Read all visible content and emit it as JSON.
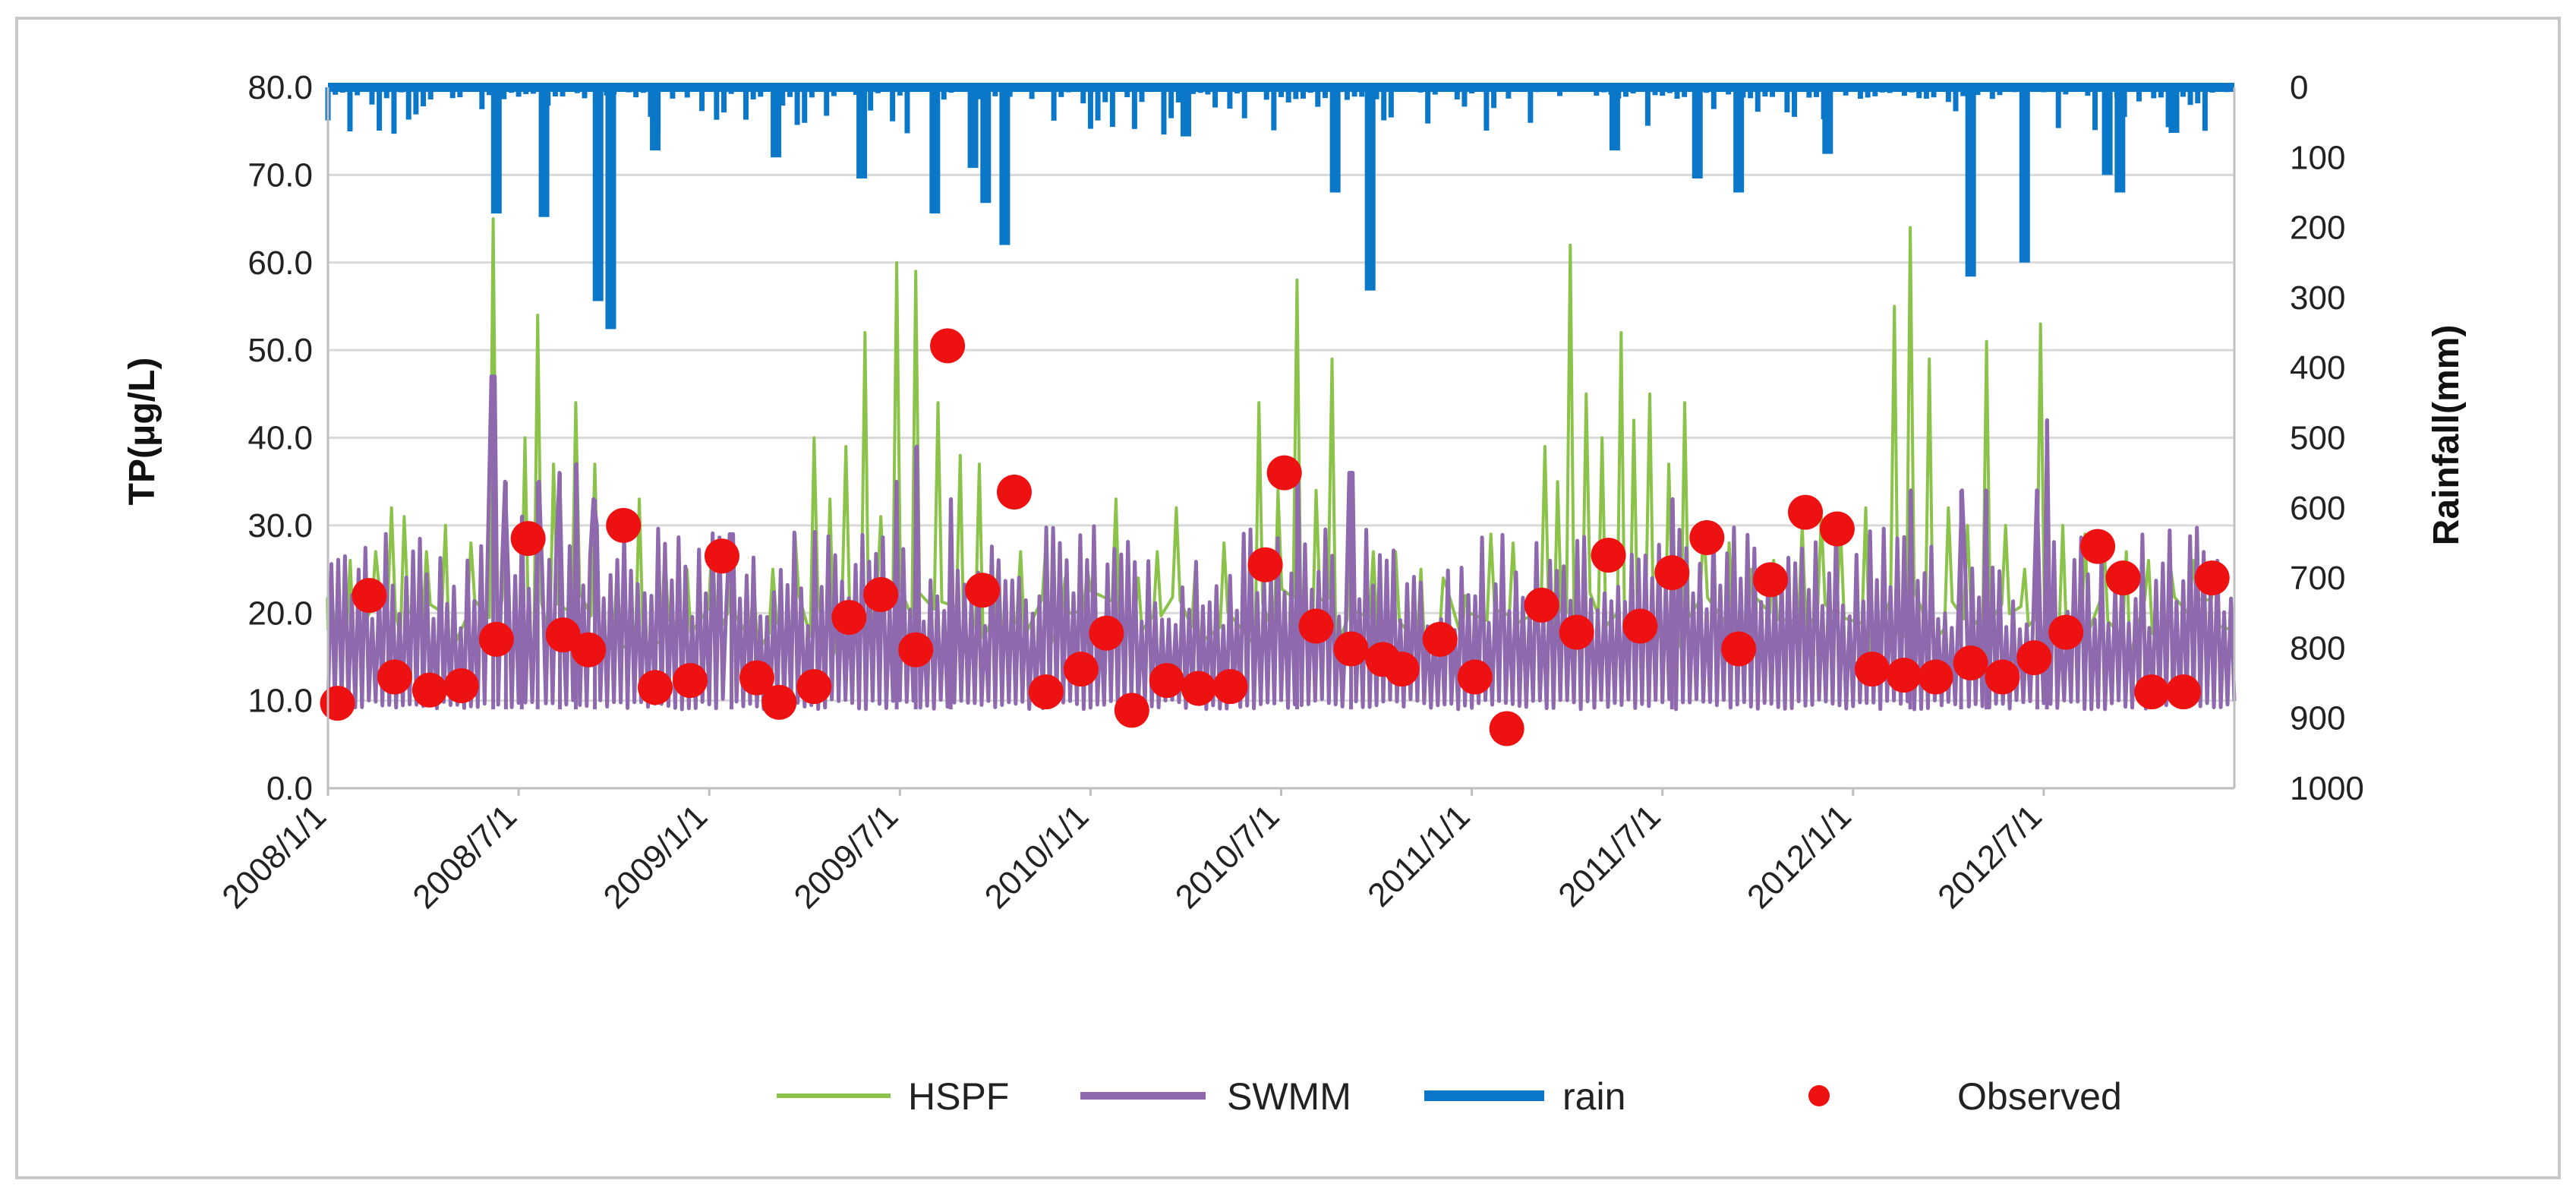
{
  "chart_data": {
    "type": "line",
    "title": "",
    "x_range": [
      "2008/1/1",
      "2012/12/31"
    ],
    "x_tick_labels": [
      "2008/1/1",
      "2008/7/1",
      "2009/1/1",
      "2009/7/1",
      "2010/1/1",
      "2010/7/1",
      "2011/1/1",
      "2011/7/1",
      "2012/1/1",
      "2012/7/1"
    ],
    "y_left": {
      "label": "TP(μg/L)",
      "range": [
        0,
        80
      ],
      "tick_labels": [
        "0.0",
        "10.0",
        "20.0",
        "30.0",
        "40.0",
        "50.0",
        "60.0",
        "70.0",
        "80.0"
      ]
    },
    "y_right": {
      "label": "Rainfall(mm)",
      "range": [
        0,
        1000
      ],
      "inverted": true,
      "tick_labels": [
        "0",
        "100",
        "200",
        "300",
        "400",
        "500",
        "600",
        "700",
        "800",
        "900",
        "1000"
      ]
    },
    "grid": true,
    "legend_position": "bottom",
    "colors": {
      "hspf": "#8bc34a",
      "swmm": "#8e69ad",
      "rain": "#0a77c8",
      "observed": "#ee1111",
      "grid": "#d9d9d9",
      "frame": "#c8c8c8"
    },
    "series": [
      {
        "name": "HSPF",
        "type": "line",
        "axis": "left",
        "baseline": 10,
        "peaks": [
          {
            "month": 0.1,
            "value": 23
          },
          {
            "month": 0.7,
            "value": 26
          },
          {
            "month": 1.5,
            "value": 27
          },
          {
            "month": 2.0,
            "value": 32
          },
          {
            "month": 2.4,
            "value": 31
          },
          {
            "month": 3.1,
            "value": 27
          },
          {
            "month": 3.7,
            "value": 30
          },
          {
            "month": 4.5,
            "value": 28
          },
          {
            "month": 5.2,
            "value": 65
          },
          {
            "month": 5.6,
            "value": 31
          },
          {
            "month": 6.2,
            "value": 40
          },
          {
            "month": 6.6,
            "value": 54
          },
          {
            "month": 7.1,
            "value": 37
          },
          {
            "month": 7.8,
            "value": 44
          },
          {
            "month": 8.4,
            "value": 37
          },
          {
            "month": 9.1,
            "value": 25
          },
          {
            "month": 9.8,
            "value": 33
          },
          {
            "month": 10.6,
            "value": 27
          },
          {
            "month": 11.3,
            "value": 25
          },
          {
            "month": 12.1,
            "value": 29
          },
          {
            "month": 12.7,
            "value": 28
          },
          {
            "month": 13.4,
            "value": 24
          },
          {
            "month": 14.0,
            "value": 25
          },
          {
            "month": 14.7,
            "value": 29
          },
          {
            "month": 15.3,
            "value": 40
          },
          {
            "month": 15.8,
            "value": 33
          },
          {
            "month": 16.3,
            "value": 39
          },
          {
            "month": 16.9,
            "value": 52
          },
          {
            "month": 17.4,
            "value": 31
          },
          {
            "month": 17.9,
            "value": 60
          },
          {
            "month": 18.5,
            "value": 59
          },
          {
            "month": 19.2,
            "value": 44
          },
          {
            "month": 19.9,
            "value": 38
          },
          {
            "month": 20.5,
            "value": 37
          },
          {
            "month": 21.1,
            "value": 26
          },
          {
            "month": 21.8,
            "value": 27
          },
          {
            "month": 22.6,
            "value": 28
          },
          {
            "month": 23.2,
            "value": 24
          },
          {
            "month": 23.9,
            "value": 25
          },
          {
            "month": 24.8,
            "value": 33
          },
          {
            "month": 25.5,
            "value": 24
          },
          {
            "month": 26.1,
            "value": 27
          },
          {
            "month": 26.7,
            "value": 32
          },
          {
            "month": 27.3,
            "value": 25
          },
          {
            "month": 28.2,
            "value": 28
          },
          {
            "month": 29.3,
            "value": 44
          },
          {
            "month": 29.9,
            "value": 34
          },
          {
            "month": 30.5,
            "value": 58
          },
          {
            "month": 31.1,
            "value": 34
          },
          {
            "month": 31.6,
            "value": 49
          },
          {
            "month": 32.2,
            "value": 36
          },
          {
            "month": 32.9,
            "value": 27
          },
          {
            "month": 33.6,
            "value": 27
          },
          {
            "month": 34.4,
            "value": 25
          },
          {
            "month": 35.1,
            "value": 24
          },
          {
            "month": 35.8,
            "value": 22
          },
          {
            "month": 36.6,
            "value": 29
          },
          {
            "month": 37.3,
            "value": 28
          },
          {
            "month": 38.3,
            "value": 39
          },
          {
            "month": 38.7,
            "value": 35
          },
          {
            "month": 39.1,
            "value": 62
          },
          {
            "month": 39.6,
            "value": 45
          },
          {
            "month": 40.1,
            "value": 40
          },
          {
            "month": 40.7,
            "value": 52
          },
          {
            "month": 41.1,
            "value": 42
          },
          {
            "month": 41.6,
            "value": 45
          },
          {
            "month": 42.2,
            "value": 37
          },
          {
            "month": 42.7,
            "value": 44
          },
          {
            "month": 43.3,
            "value": 30
          },
          {
            "month": 44.1,
            "value": 28
          },
          {
            "month": 44.8,
            "value": 25
          },
          {
            "month": 45.5,
            "value": 26
          },
          {
            "month": 46.4,
            "value": 30
          },
          {
            "month": 47.0,
            "value": 31
          },
          {
            "month": 47.6,
            "value": 30
          },
          {
            "month": 48.4,
            "value": 32
          },
          {
            "month": 49.3,
            "value": 55
          },
          {
            "month": 49.8,
            "value": 64
          },
          {
            "month": 50.4,
            "value": 49
          },
          {
            "month": 51.0,
            "value": 32
          },
          {
            "month": 51.6,
            "value": 30
          },
          {
            "month": 52.2,
            "value": 51
          },
          {
            "month": 52.8,
            "value": 30
          },
          {
            "month": 53.4,
            "value": 25
          },
          {
            "month": 53.9,
            "value": 53
          },
          {
            "month": 54.6,
            "value": 30
          },
          {
            "month": 55.3,
            "value": 29
          },
          {
            "month": 55.9,
            "value": 28
          },
          {
            "month": 56.6,
            "value": 27
          },
          {
            "month": 57.3,
            "value": 26
          },
          {
            "month": 58.0,
            "value": 25
          },
          {
            "month": 58.7,
            "value": 26
          },
          {
            "month": 59.4,
            "value": 25
          }
        ]
      },
      {
        "name": "SWMM",
        "type": "line",
        "axis": "left",
        "low": 9,
        "high_range": [
          18,
          30
        ],
        "peaks": [
          {
            "month": 5.2,
            "value": 47
          },
          {
            "month": 5.6,
            "value": 35
          },
          {
            "month": 6.1,
            "value": 31
          },
          {
            "month": 6.6,
            "value": 35
          },
          {
            "month": 7.3,
            "value": 36
          },
          {
            "month": 7.8,
            "value": 37
          },
          {
            "month": 8.4,
            "value": 33
          },
          {
            "month": 12.7,
            "value": 29
          },
          {
            "month": 17.9,
            "value": 35
          },
          {
            "month": 18.5,
            "value": 39
          },
          {
            "month": 19.6,
            "value": 33
          },
          {
            "month": 30.5,
            "value": 35
          },
          {
            "month": 32.2,
            "value": 36
          },
          {
            "month": 42.3,
            "value": 33
          },
          {
            "month": 49.8,
            "value": 34
          },
          {
            "month": 51.4,
            "value": 34
          },
          {
            "month": 52.2,
            "value": 34
          },
          {
            "month": 53.8,
            "value": 34
          },
          {
            "month": 54.1,
            "value": 42
          }
        ]
      },
      {
        "name": "rain",
        "type": "bar",
        "axis": "right",
        "spikes": [
          {
            "month": 5.3,
            "value": 180
          },
          {
            "month": 6.8,
            "value": 185
          },
          {
            "month": 8.5,
            "value": 305
          },
          {
            "month": 8.9,
            "value": 345
          },
          {
            "month": 10.3,
            "value": 90
          },
          {
            "month": 14.1,
            "value": 100
          },
          {
            "month": 16.8,
            "value": 130
          },
          {
            "month": 19.1,
            "value": 180
          },
          {
            "month": 20.3,
            "value": 115
          },
          {
            "month": 20.7,
            "value": 165
          },
          {
            "month": 21.3,
            "value": 225
          },
          {
            "month": 27.0,
            "value": 70
          },
          {
            "month": 31.7,
            "value": 150
          },
          {
            "month": 32.8,
            "value": 290
          },
          {
            "month": 40.5,
            "value": 90
          },
          {
            "month": 43.1,
            "value": 130
          },
          {
            "month": 44.4,
            "value": 150
          },
          {
            "month": 47.2,
            "value": 95
          },
          {
            "month": 51.7,
            "value": 270
          },
          {
            "month": 53.4,
            "value": 250
          },
          {
            "month": 56.0,
            "value": 125
          },
          {
            "month": 56.4,
            "value": 150
          },
          {
            "month": 58.1,
            "value": 65
          }
        ]
      },
      {
        "name": "Observed",
        "type": "scatter",
        "axis": "left",
        "points": [
          {
            "month": 0.3,
            "value": 9.7
          },
          {
            "month": 1.3,
            "value": 22.0
          },
          {
            "month": 2.1,
            "value": 12.7
          },
          {
            "month": 3.2,
            "value": 11.2
          },
          {
            "month": 4.2,
            "value": 11.7
          },
          {
            "month": 5.3,
            "value": 17.0
          },
          {
            "month": 6.3,
            "value": 28.5
          },
          {
            "month": 7.4,
            "value": 17.5
          },
          {
            "month": 8.2,
            "value": 15.8
          },
          {
            "month": 9.3,
            "value": 30.0
          },
          {
            "month": 10.3,
            "value": 11.5
          },
          {
            "month": 11.4,
            "value": 12.3
          },
          {
            "month": 12.4,
            "value": 26.5
          },
          {
            "month": 13.5,
            "value": 12.6
          },
          {
            "month": 14.2,
            "value": 9.8
          },
          {
            "month": 15.3,
            "value": 11.6
          },
          {
            "month": 16.4,
            "value": 19.5
          },
          {
            "month": 17.4,
            "value": 22.1
          },
          {
            "month": 18.5,
            "value": 15.8
          },
          {
            "month": 19.5,
            "value": 50.5
          },
          {
            "month": 20.6,
            "value": 22.6
          },
          {
            "month": 21.6,
            "value": 33.8
          },
          {
            "month": 22.6,
            "value": 11.0
          },
          {
            "month": 23.7,
            "value": 13.6
          },
          {
            "month": 24.5,
            "value": 17.7
          },
          {
            "month": 25.3,
            "value": 8.9
          },
          {
            "month": 26.4,
            "value": 12.3
          },
          {
            "month": 27.4,
            "value": 11.4
          },
          {
            "month": 28.4,
            "value": 11.6
          },
          {
            "month": 29.5,
            "value": 25.5
          },
          {
            "month": 30.1,
            "value": 36.0
          },
          {
            "month": 31.1,
            "value": 18.5
          },
          {
            "month": 32.2,
            "value": 15.9
          },
          {
            "month": 33.2,
            "value": 14.7
          },
          {
            "month": 33.8,
            "value": 13.6
          },
          {
            "month": 35.0,
            "value": 17.0
          },
          {
            "month": 36.1,
            "value": 12.7
          },
          {
            "month": 37.1,
            "value": 6.8
          },
          {
            "month": 38.2,
            "value": 20.9
          },
          {
            "month": 39.3,
            "value": 17.8
          },
          {
            "month": 40.3,
            "value": 26.6
          },
          {
            "month": 41.3,
            "value": 18.5
          },
          {
            "month": 42.3,
            "value": 24.6
          },
          {
            "month": 43.4,
            "value": 28.6
          },
          {
            "month": 44.4,
            "value": 15.9
          },
          {
            "month": 45.4,
            "value": 23.8
          },
          {
            "month": 46.5,
            "value": 31.5
          },
          {
            "month": 47.5,
            "value": 29.6
          },
          {
            "month": 48.6,
            "value": 13.6
          },
          {
            "month": 49.6,
            "value": 12.9
          },
          {
            "month": 50.6,
            "value": 12.7
          },
          {
            "month": 51.7,
            "value": 14.3
          },
          {
            "month": 52.7,
            "value": 12.7
          },
          {
            "month": 53.7,
            "value": 14.9
          },
          {
            "month": 54.7,
            "value": 17.8
          },
          {
            "month": 55.7,
            "value": 27.6
          },
          {
            "month": 56.5,
            "value": 24.0
          },
          {
            "month": 57.4,
            "value": 11.0
          },
          {
            "month": 58.4,
            "value": 11.0
          },
          {
            "month": 59.3,
            "value": 24.0
          }
        ]
      }
    ]
  }
}
